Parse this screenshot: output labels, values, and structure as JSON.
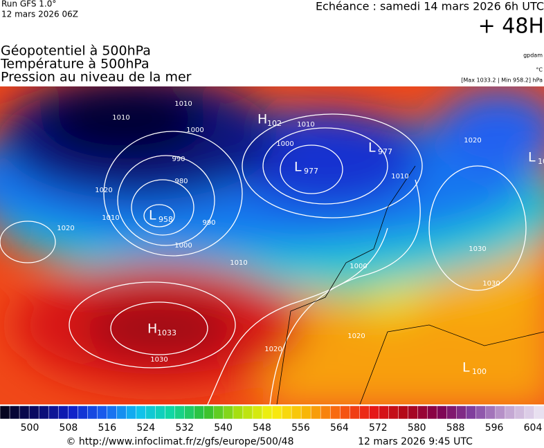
{
  "header": {
    "run": "Run GFS 1.0°",
    "run_date": "12 mars 2026 06Z",
    "valid": "Echéance : samedi 14 mars 2026 6h UTC",
    "lead": "+ 48H"
  },
  "titles": [
    "Géopotentiel à 500hPa",
    "Température à 500hPa",
    "Pression au niveau de la mer"
  ],
  "units": {
    "geopotential": "gpdam",
    "temperature": "°C",
    "pressure": "[Max 1033.2 | Min 958.2] hPa"
  },
  "centers": [
    {
      "letter": "L",
      "value": "958"
    },
    {
      "letter": "H",
      "value": "1033"
    },
    {
      "letter": "L",
      "value": "977"
    },
    {
      "letter": "L",
      "value": "977"
    },
    {
      "letter": "H",
      "value": "102"
    },
    {
      "letter": "L",
      "value": "10"
    },
    {
      "letter": "L",
      "value": "100"
    }
  ],
  "isobar_labels": [
    "1010",
    "1010",
    "1000",
    "990",
    "980",
    "990",
    "1000",
    "1020",
    "1010",
    "1010",
    "1000",
    "1010",
    "1020",
    "1030",
    "1020",
    "1030",
    "1000",
    "1010",
    "1020",
    "1030",
    "1020"
  ],
  "colorbar": {
    "labels": [
      "500",
      "508",
      "516",
      "524",
      "532",
      "540",
      "548",
      "556",
      "564",
      "572",
      "580",
      "588",
      "596",
      "604"
    ],
    "stops": [
      "#050520",
      "#0a0a6a",
      "#1020c8",
      "#1a60f0",
      "#10c0f0",
      "#10d8a0",
      "#30c030",
      "#a8e010",
      "#f8f010",
      "#f8b808",
      "#f86010",
      "#e81818",
      "#b00818",
      "#800050",
      "#8040a0",
      "#c0a0d0",
      "#e8e0f0"
    ]
  },
  "footer": {
    "url": "© http://www.infoclimat.fr/z/gfs/europe/500/48",
    "time": "12 mars 2026  9:45 UTC"
  }
}
